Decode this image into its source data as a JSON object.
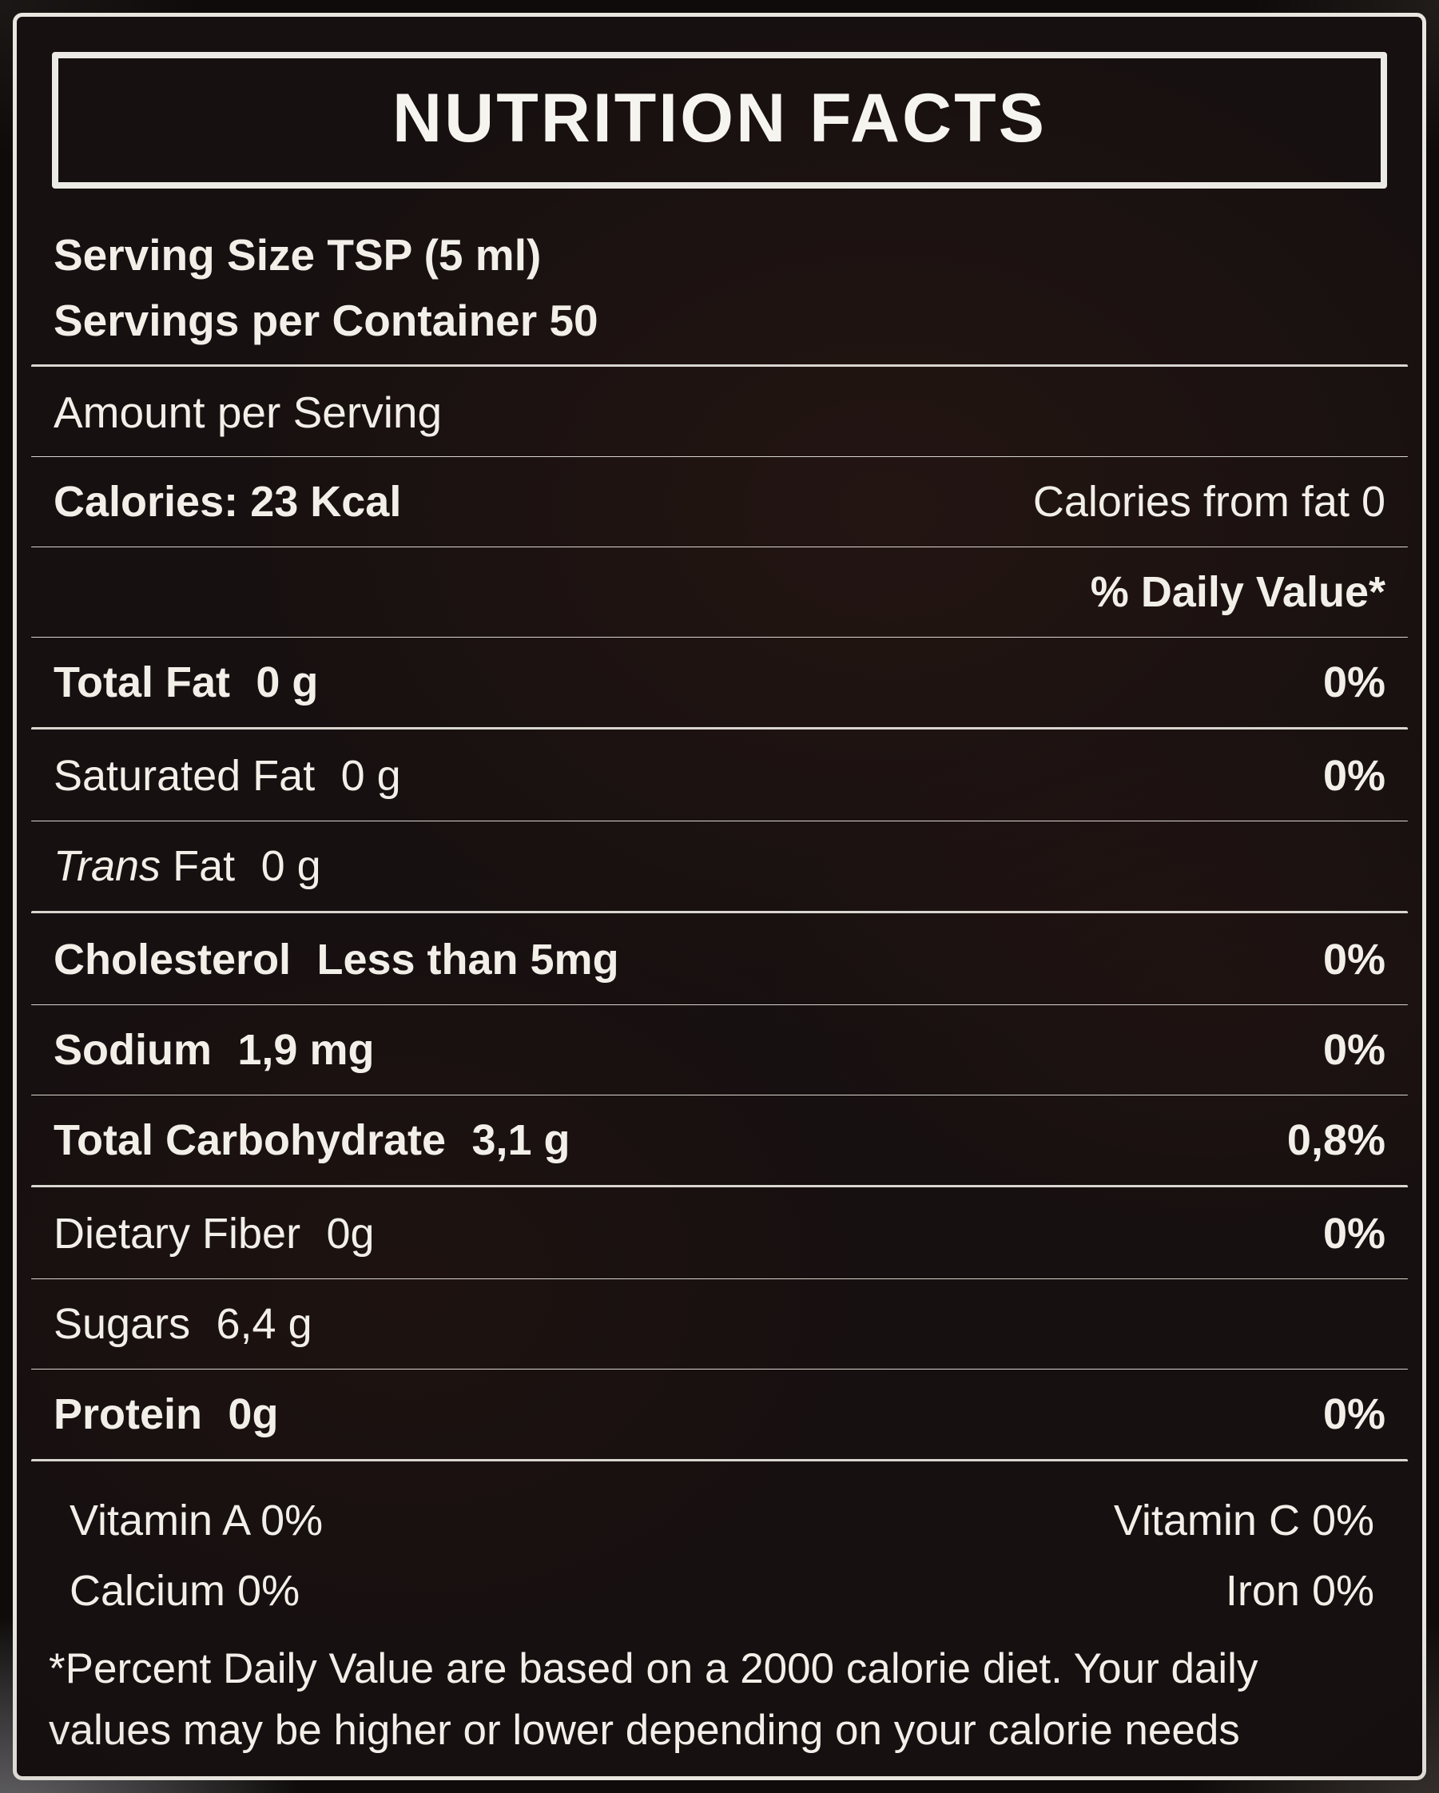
{
  "colors": {
    "label_background": "#161010",
    "text": "#f2efe9",
    "rule": "#d9d5cf",
    "border": "#e9e6e0"
  },
  "label": {
    "title": "NUTRITION FACTS",
    "serving_size": "Serving Size TSP (5 ml)",
    "servings_per_container": "Servings per Container 50",
    "amount_per_serving": "Amount per Serving",
    "calories_label": "Calories:",
    "calories_value": "23 Kcal",
    "calories_from_fat": "Calories from fat 0",
    "daily_value_header": "% Daily Value*",
    "nutrients": [
      {
        "name": "Total Fat",
        "amount": "0 g",
        "dv": "0%"
      },
      {
        "name": "Saturated Fat",
        "amount": "0 g",
        "dv": "0%"
      },
      {
        "name_prefix": "Trans",
        "name": "Fat",
        "amount": "0 g",
        "dv": ""
      },
      {
        "name": "Cholesterol",
        "amount": "Less than 5mg",
        "dv": "0%"
      },
      {
        "name": "Sodium",
        "amount": "1,9 mg",
        "dv": "0%"
      },
      {
        "name": "Total Carbohydrate",
        "amount": "3,1 g",
        "dv": "0,8%"
      },
      {
        "name": "Dietary Fiber",
        "amount": "0g",
        "dv": "0%"
      },
      {
        "name": "Sugars",
        "amount": "6,4 g",
        "dv": ""
      },
      {
        "name": "Protein",
        "amount": "0g",
        "dv": "0%"
      }
    ],
    "micronutrients": [
      {
        "left": "Vitamin A 0%",
        "right": "Vitamin C 0%"
      },
      {
        "left": "Calcium 0%",
        "right": "Iron 0%"
      }
    ],
    "footnote": "*Percent Daily Value are based on a 2000 calorie diet. Your daily values may be higher or lower depending on your calorie needs"
  }
}
